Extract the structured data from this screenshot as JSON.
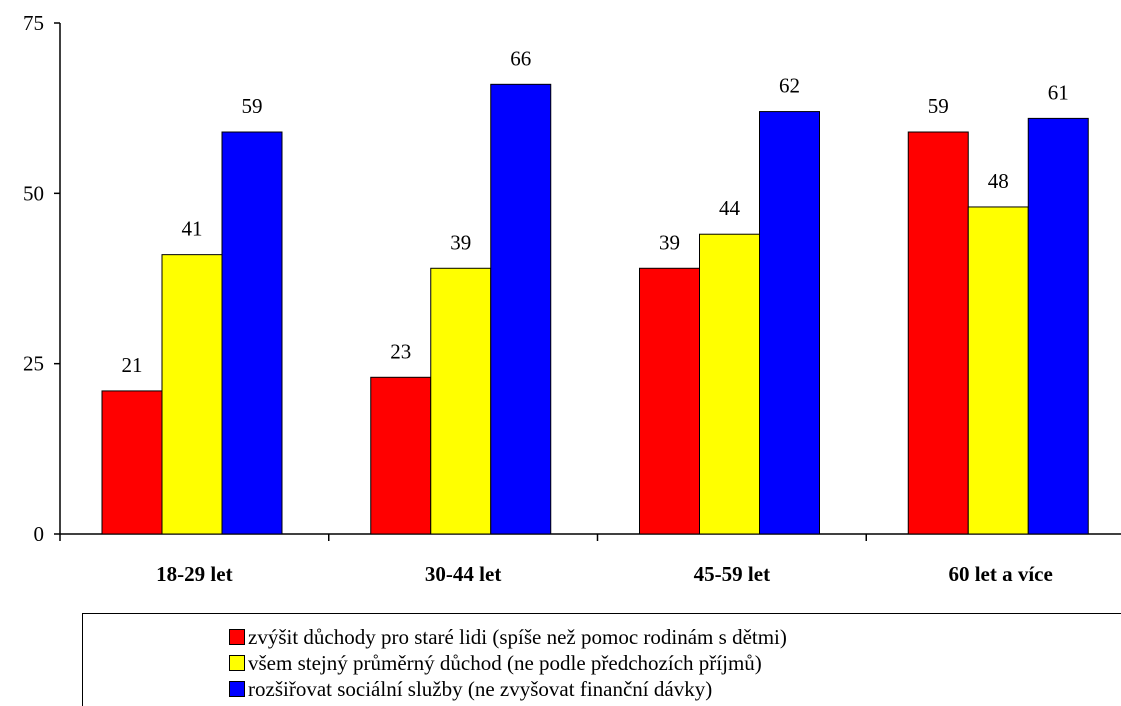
{
  "chart_data": {
    "type": "bar",
    "categories": [
      "18-29 let",
      "30-44 let",
      "45-59 let",
      "60 let a více"
    ],
    "series": [
      {
        "name": "zvýšit důchody pro staré lidi (spíše než pomoc rodinám s dětmi)",
        "color": "#ff0000",
        "values": [
          21,
          23,
          39,
          59
        ]
      },
      {
        "name": "všem stejný průměrný důchod (ne podle předchozích příjmů)",
        "color": "#ffff00",
        "values": [
          41,
          39,
          44,
          48
        ]
      },
      {
        "name": "rozšiřovat sociální služby (ne zvyšovat finanční dávky)",
        "color": "#0000ff",
        "values": [
          59,
          66,
          62,
          61
        ]
      }
    ],
    "yticks": [
      0,
      25,
      50,
      75
    ],
    "ylim": [
      0,
      75
    ],
    "grid": false,
    "legend": "bottom"
  }
}
